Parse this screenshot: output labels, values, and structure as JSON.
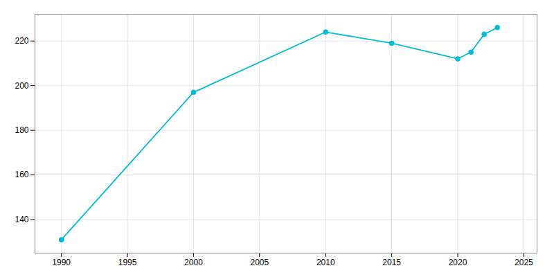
{
  "chart_data": {
    "type": "line",
    "x": [
      1990,
      2000,
      2010,
      2015,
      2020,
      2021,
      2022,
      2023
    ],
    "values": [
      131,
      197,
      224,
      219,
      212,
      215,
      223,
      226
    ],
    "color": "#00bcd4",
    "marker": "circle",
    "xlim": [
      1988,
      2026
    ],
    "xticks": [
      1990,
      1995,
      2000,
      2005,
      2010,
      2015,
      2020,
      2025
    ],
    "ylim": [
      125,
      232
    ],
    "yticks": [
      140,
      160,
      180,
      200,
      220
    ],
    "grid": true
  }
}
